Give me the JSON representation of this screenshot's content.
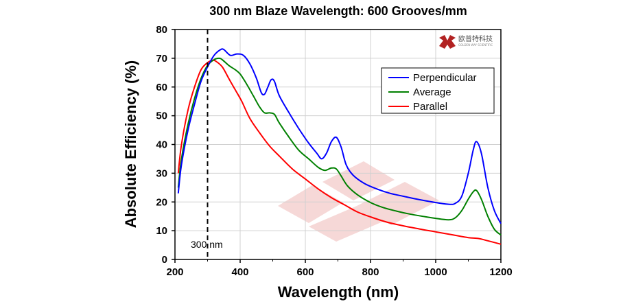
{
  "chart_data": {
    "type": "line",
    "title": "300 nm Blaze Wavelength: 600 Grooves/mm",
    "xlabel": "Wavelength (nm)",
    "ylabel": "Absolute Efficiency (%)",
    "xlim": [
      200,
      1200
    ],
    "ylim": [
      0,
      80
    ],
    "xticks": [
      200,
      400,
      600,
      800,
      1000,
      1200
    ],
    "yticks": [
      0,
      10,
      20,
      30,
      40,
      50,
      60,
      70,
      80
    ],
    "grid": true,
    "legend_position": "top-right",
    "annotation": {
      "text": "300 nm",
      "x": 300
    },
    "series": [
      {
        "name": "Perpendicular",
        "color": "#0000ff",
        "points": [
          [
            210,
            23
          ],
          [
            220,
            33
          ],
          [
            240,
            45
          ],
          [
            260,
            54
          ],
          [
            280,
            62
          ],
          [
            300,
            67
          ],
          [
            320,
            71
          ],
          [
            340,
            73
          ],
          [
            350,
            73
          ],
          [
            370,
            71
          ],
          [
            390,
            71.5
          ],
          [
            410,
            71
          ],
          [
            430,
            68
          ],
          [
            450,
            63
          ],
          [
            465,
            58
          ],
          [
            475,
            57.5
          ],
          [
            485,
            60
          ],
          [
            495,
            62.5
          ],
          [
            505,
            62
          ],
          [
            520,
            57
          ],
          [
            550,
            51
          ],
          [
            580,
            45.5
          ],
          [
            610,
            40.5
          ],
          [
            635,
            37
          ],
          [
            650,
            35
          ],
          [
            665,
            37
          ],
          [
            680,
            41
          ],
          [
            695,
            42.5
          ],
          [
            710,
            39
          ],
          [
            725,
            33
          ],
          [
            745,
            29.5
          ],
          [
            780,
            26.5
          ],
          [
            820,
            24.5
          ],
          [
            860,
            23
          ],
          [
            900,
            22
          ],
          [
            950,
            20.8
          ],
          [
            1000,
            19.8
          ],
          [
            1040,
            19.2
          ],
          [
            1060,
            19.5
          ],
          [
            1080,
            22
          ],
          [
            1100,
            30
          ],
          [
            1115,
            38
          ],
          [
            1125,
            41
          ],
          [
            1140,
            37
          ],
          [
            1160,
            25
          ],
          [
            1180,
            17
          ],
          [
            1200,
            12.5
          ]
        ]
      },
      {
        "name": "Average",
        "color": "#008000",
        "points": [
          [
            210,
            25
          ],
          [
            220,
            35
          ],
          [
            240,
            47
          ],
          [
            260,
            56
          ],
          [
            280,
            63
          ],
          [
            300,
            67.5
          ],
          [
            320,
            69.5
          ],
          [
            335,
            70
          ],
          [
            345,
            69.5
          ],
          [
            365,
            67.5
          ],
          [
            385,
            66
          ],
          [
            400,
            64.5
          ],
          [
            420,
            61
          ],
          [
            440,
            57
          ],
          [
            460,
            53
          ],
          [
            475,
            51
          ],
          [
            490,
            51
          ],
          [
            505,
            50.5
          ],
          [
            520,
            47.5
          ],
          [
            550,
            42.5
          ],
          [
            580,
            38
          ],
          [
            610,
            35
          ],
          [
            640,
            32
          ],
          [
            660,
            31
          ],
          [
            680,
            31.8
          ],
          [
            695,
            31.5
          ],
          [
            710,
            29
          ],
          [
            730,
            25.5
          ],
          [
            760,
            22.5
          ],
          [
            800,
            19.8
          ],
          [
            840,
            18
          ],
          [
            880,
            16.8
          ],
          [
            920,
            15.8
          ],
          [
            960,
            15
          ],
          [
            1000,
            14.3
          ],
          [
            1040,
            13.8
          ],
          [
            1060,
            14.5
          ],
          [
            1080,
            17
          ],
          [
            1100,
            21
          ],
          [
            1115,
            23.5
          ],
          [
            1125,
            24
          ],
          [
            1140,
            21
          ],
          [
            1160,
            15
          ],
          [
            1180,
            10.5
          ],
          [
            1200,
            8.5
          ]
        ]
      },
      {
        "name": "Parallel",
        "color": "#ff0000",
        "points": [
          [
            210,
            30
          ],
          [
            220,
            40
          ],
          [
            240,
            52
          ],
          [
            260,
            60
          ],
          [
            280,
            66
          ],
          [
            300,
            68.5
          ],
          [
            315,
            69.3
          ],
          [
            325,
            69
          ],
          [
            345,
            67
          ],
          [
            365,
            63
          ],
          [
            385,
            59
          ],
          [
            405,
            55
          ],
          [
            430,
            49
          ],
          [
            460,
            44
          ],
          [
            490,
            39.5
          ],
          [
            520,
            36
          ],
          [
            560,
            31.5
          ],
          [
            600,
            28
          ],
          [
            640,
            24.5
          ],
          [
            680,
            21.5
          ],
          [
            720,
            19
          ],
          [
            760,
            16.5
          ],
          [
            800,
            14.8
          ],
          [
            850,
            13
          ],
          [
            900,
            11.7
          ],
          [
            950,
            10.6
          ],
          [
            1000,
            9.6
          ],
          [
            1050,
            8.6
          ],
          [
            1100,
            7.6
          ],
          [
            1130,
            7.3
          ],
          [
            1160,
            6.5
          ],
          [
            1200,
            5.3
          ]
        ]
      }
    ]
  },
  "logo": {
    "brand_text": "欧普特科技",
    "tagline": "GOLDEN WAY SCIENTIFIC",
    "color": "#b22222"
  },
  "watermark_color": "#e6b0aa"
}
